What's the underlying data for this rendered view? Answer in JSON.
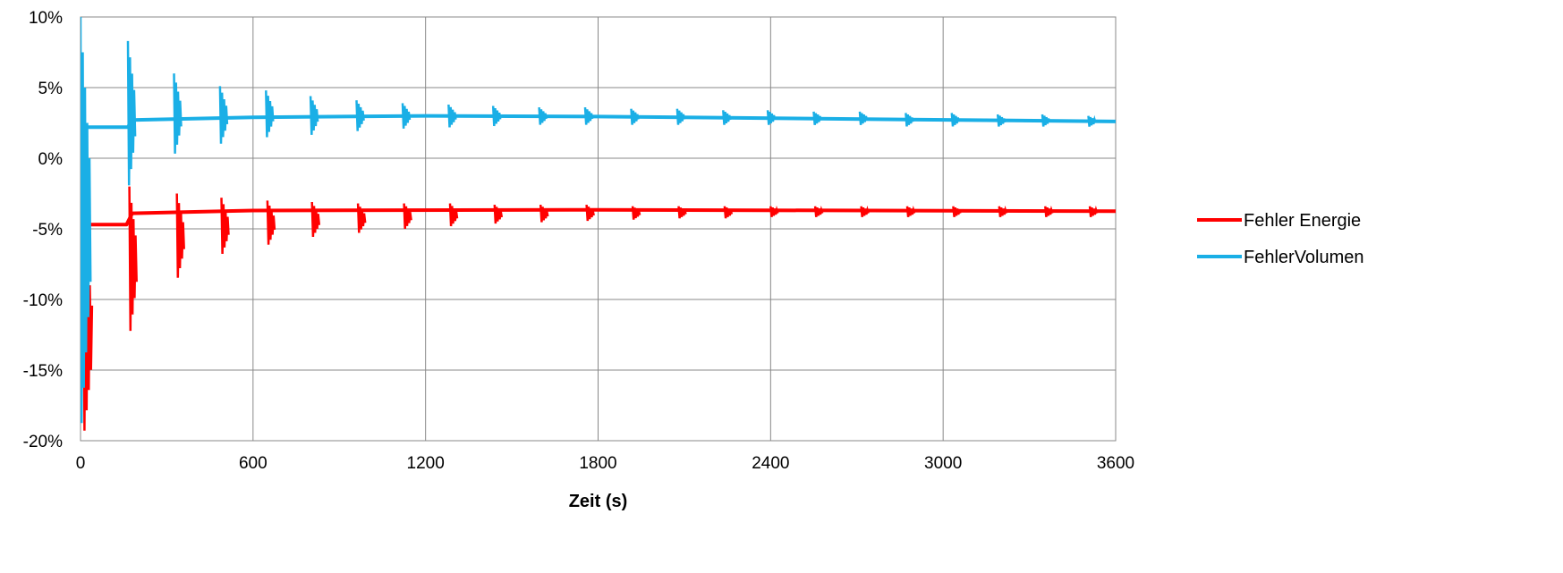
{
  "chart_data": {
    "type": "line",
    "title": "",
    "xlabel": "Zeit (s)",
    "ylabel": "",
    "xlim": [
      0,
      3600
    ],
    "ylim": [
      -20,
      10
    ],
    "x_ticks": [
      0,
      600,
      1200,
      1800,
      2400,
      3000,
      3600
    ],
    "x_tick_labels": [
      "0",
      "600",
      "1200",
      "1800",
      "2400",
      "3000",
      "3600"
    ],
    "y_ticks": [
      10,
      5,
      0,
      -5,
      -10,
      -15,
      -20
    ],
    "y_tick_labels": [
      "10%",
      "5%",
      "0%",
      "-5%",
      "-10%",
      "-15%",
      "-20%"
    ],
    "grid": true,
    "legend_position": "right",
    "series": [
      {
        "name": "Fehler Energie",
        "color": "#ff0000",
        "baseline": [
          [
            0,
            -4.7
          ],
          [
            160,
            -4.7
          ],
          [
            180,
            -3.9
          ],
          [
            600,
            -3.7
          ],
          [
            1800,
            -3.65
          ],
          [
            3600,
            -3.75
          ]
        ],
        "bursts": [
          {
            "x": [
              10,
              40
            ],
            "range": [
              -20,
              -4.7
            ]
          },
          {
            "x": [
              170,
              195
            ],
            "range": [
              -12.8,
              -2.0
            ]
          },
          {
            "x": [
              335,
              360
            ],
            "range": [
              -8.8,
              -2.5
            ]
          },
          {
            "x": [
              490,
              515
            ],
            "range": [
              -7.0,
              -2.8
            ]
          },
          {
            "x": [
              650,
              675
            ],
            "range": [
              -6.3,
              -3.0
            ]
          },
          {
            "x": [
              805,
              830
            ],
            "range": [
              -5.7,
              -3.1
            ]
          },
          {
            "x": [
              965,
              990
            ],
            "range": [
              -5.4,
              -3.2
            ]
          },
          {
            "x": [
              1125,
              1150
            ],
            "range": [
              -5.1,
              -3.2
            ]
          },
          {
            "x": [
              1285,
              1310
            ],
            "range": [
              -4.9,
              -3.2
            ]
          },
          {
            "x": [
              1440,
              1465
            ],
            "range": [
              -4.7,
              -3.3
            ]
          },
          {
            "x": [
              1600,
              1625
            ],
            "range": [
              -4.6,
              -3.3
            ]
          },
          {
            "x": [
              1760,
              1785
            ],
            "range": [
              -4.5,
              -3.3
            ]
          },
          {
            "x": [
              1920,
              1945
            ],
            "range": [
              -4.4,
              -3.4
            ]
          },
          {
            "x": [
              2080,
              2105
            ],
            "range": [
              -4.3,
              -3.4
            ]
          },
          {
            "x": [
              2240,
              2265
            ],
            "range": [
              -4.3,
              -3.4
            ]
          },
          {
            "x": [
              2400,
              2425
            ],
            "range": [
              -4.2,
              -3.4
            ]
          },
          {
            "x": [
              2555,
              2580
            ],
            "range": [
              -4.2,
              -3.4
            ]
          },
          {
            "x": [
              2715,
              2740
            ],
            "range": [
              -4.2,
              -3.4
            ]
          },
          {
            "x": [
              2875,
              2900
            ],
            "range": [
              -4.2,
              -3.4
            ]
          },
          {
            "x": [
              3035,
              3060
            ],
            "range": [
              -4.2,
              -3.4
            ]
          },
          {
            "x": [
              3195,
              3220
            ],
            "range": [
              -4.2,
              -3.4
            ]
          },
          {
            "x": [
              3355,
              3380
            ],
            "range": [
              -4.2,
              -3.4
            ]
          },
          {
            "x": [
              3510,
              3535
            ],
            "range": [
              -4.2,
              -3.4
            ]
          }
        ]
      },
      {
        "name": "FehlerVolumen",
        "color": "#1aafe6",
        "baseline": [
          [
            0,
            2.2
          ],
          [
            165,
            2.2
          ],
          [
            180,
            2.7
          ],
          [
            600,
            2.9
          ],
          [
            1200,
            3.0
          ],
          [
            1800,
            2.95
          ],
          [
            3600,
            2.6
          ]
        ],
        "bursts": [
          {
            "x": [
              0,
              35
            ],
            "range": [
              -20,
              10
            ]
          },
          {
            "x": [
              165,
              190
            ],
            "range": [
              -2.5,
              8.3
            ]
          },
          {
            "x": [
              325,
              350
            ],
            "range": [
              0.0,
              6.0
            ]
          },
          {
            "x": [
              485,
              510
            ],
            "range": [
              0.8,
              5.1
            ]
          },
          {
            "x": [
              645,
              670
            ],
            "range": [
              1.3,
              4.8
            ]
          },
          {
            "x": [
              800,
              825
            ],
            "range": [
              1.5,
              4.4
            ]
          },
          {
            "x": [
              960,
              985
            ],
            "range": [
              1.8,
              4.1
            ]
          },
          {
            "x": [
              1120,
              1145
            ],
            "range": [
              2.0,
              3.9
            ]
          },
          {
            "x": [
              1280,
              1305
            ],
            "range": [
              2.1,
              3.8
            ]
          },
          {
            "x": [
              1435,
              1460
            ],
            "range": [
              2.2,
              3.7
            ]
          },
          {
            "x": [
              1595,
              1620
            ],
            "range": [
              2.3,
              3.6
            ]
          },
          {
            "x": [
              1755,
              1780
            ],
            "range": [
              2.3,
              3.6
            ]
          },
          {
            "x": [
              1915,
              1940
            ],
            "range": [
              2.3,
              3.5
            ]
          },
          {
            "x": [
              2075,
              2100
            ],
            "range": [
              2.3,
              3.5
            ]
          },
          {
            "x": [
              2235,
              2260
            ],
            "range": [
              2.3,
              3.4
            ]
          },
          {
            "x": [
              2390,
              2415
            ],
            "range": [
              2.3,
              3.4
            ]
          },
          {
            "x": [
              2550,
              2575
            ],
            "range": [
              2.3,
              3.3
            ]
          },
          {
            "x": [
              2710,
              2735
            ],
            "range": [
              2.3,
              3.3
            ]
          },
          {
            "x": [
              2870,
              2895
            ],
            "range": [
              2.2,
              3.2
            ]
          },
          {
            "x": [
              3030,
              3055
            ],
            "range": [
              2.2,
              3.2
            ]
          },
          {
            "x": [
              3190,
              3215
            ],
            "range": [
              2.2,
              3.1
            ]
          },
          {
            "x": [
              3345,
              3370
            ],
            "range": [
              2.2,
              3.1
            ]
          },
          {
            "x": [
              3505,
              3530
            ],
            "range": [
              2.2,
              3.0
            ]
          }
        ]
      }
    ]
  }
}
